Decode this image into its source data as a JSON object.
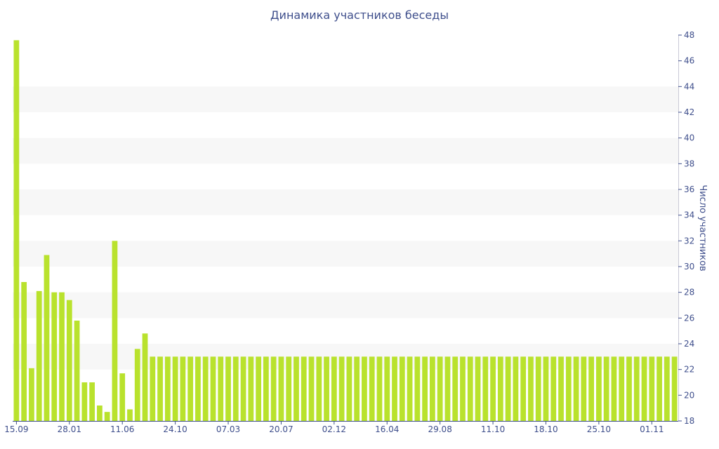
{
  "chart_data": {
    "type": "bar",
    "title": "Динамика участников беседы",
    "xlabel": "",
    "ylabel": "Число участников",
    "y_axis_side": "right",
    "ylim": [
      18,
      48
    ],
    "y_ticks": [
      18,
      20,
      22,
      24,
      26,
      28,
      30,
      32,
      34,
      36,
      38,
      40,
      42,
      44,
      46,
      48
    ],
    "x_tick_labels": [
      {
        "index": 0,
        "label": "15.09"
      },
      {
        "index": 7,
        "label": "28.01"
      },
      {
        "index": 14,
        "label": "11.06"
      },
      {
        "index": 21,
        "label": "24.10"
      },
      {
        "index": 28,
        "label": "07.03"
      },
      {
        "index": 35,
        "label": "20.07"
      },
      {
        "index": 42,
        "label": "02.12"
      },
      {
        "index": 49,
        "label": "16.04"
      },
      {
        "index": 56,
        "label": "29.08"
      },
      {
        "index": 63,
        "label": "11.10"
      },
      {
        "index": 70,
        "label": "18.10"
      },
      {
        "index": 77,
        "label": "25.10"
      },
      {
        "index": 84,
        "label": "01.11"
      }
    ],
    "grid": "alternating horizontal bands",
    "bar_color": "#b9e22d",
    "band_color": "#f7f7f7",
    "text_color": "#3f4f8c",
    "values": [
      47.6,
      28.8,
      22.1,
      28.1,
      30.9,
      28.0,
      28.0,
      27.4,
      25.8,
      21.0,
      21.0,
      19.2,
      18.7,
      32.0,
      21.7,
      18.9,
      23.6,
      24.8,
      23,
      23,
      23,
      23,
      23,
      23,
      23,
      23,
      23,
      23,
      23,
      23,
      23,
      23,
      23,
      23,
      23,
      23,
      23,
      23,
      23,
      23,
      23,
      23,
      23,
      23,
      23,
      23,
      23,
      23,
      23,
      23,
      23,
      23,
      23,
      23,
      23,
      23,
      23,
      23,
      23,
      23,
      23,
      23,
      23,
      23,
      23,
      23,
      23,
      23,
      23,
      23,
      23,
      23,
      23,
      23,
      23,
      23,
      23,
      23,
      23,
      23,
      23,
      23,
      23,
      23,
      23,
      23,
      23,
      23
    ]
  }
}
